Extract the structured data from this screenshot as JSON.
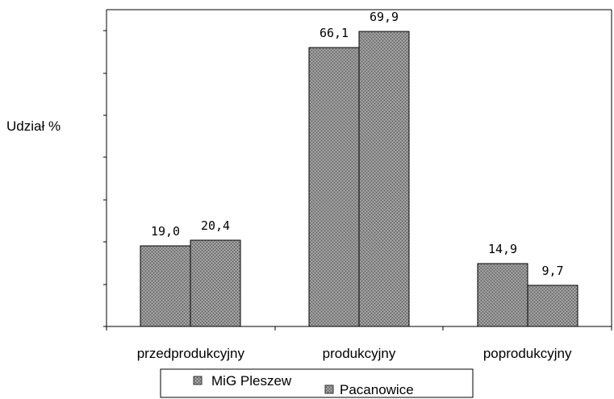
{
  "chart_data": {
    "type": "bar",
    "title": "",
    "ylabel": "Udział %",
    "xlabel": "",
    "categories": [
      "przedprodukcyjny",
      "produkcyjny",
      "poprodukcyjny"
    ],
    "series": [
      {
        "name": "MiG Pleszew",
        "values": [
          19.0,
          66.1,
          14.9
        ],
        "labels": [
          "19,0",
          "66,1",
          "14,9"
        ]
      },
      {
        "name": "Pacanowice",
        "values": [
          20.4,
          69.9,
          9.7
        ],
        "labels": [
          "20,4",
          "69,9",
          "9,7"
        ]
      }
    ],
    "ylim": [
      0,
      75
    ],
    "grid": false,
    "legend": "bottom",
    "colors": {
      "bar_fill": "#8c8c8c",
      "axis": "#000000"
    }
  }
}
